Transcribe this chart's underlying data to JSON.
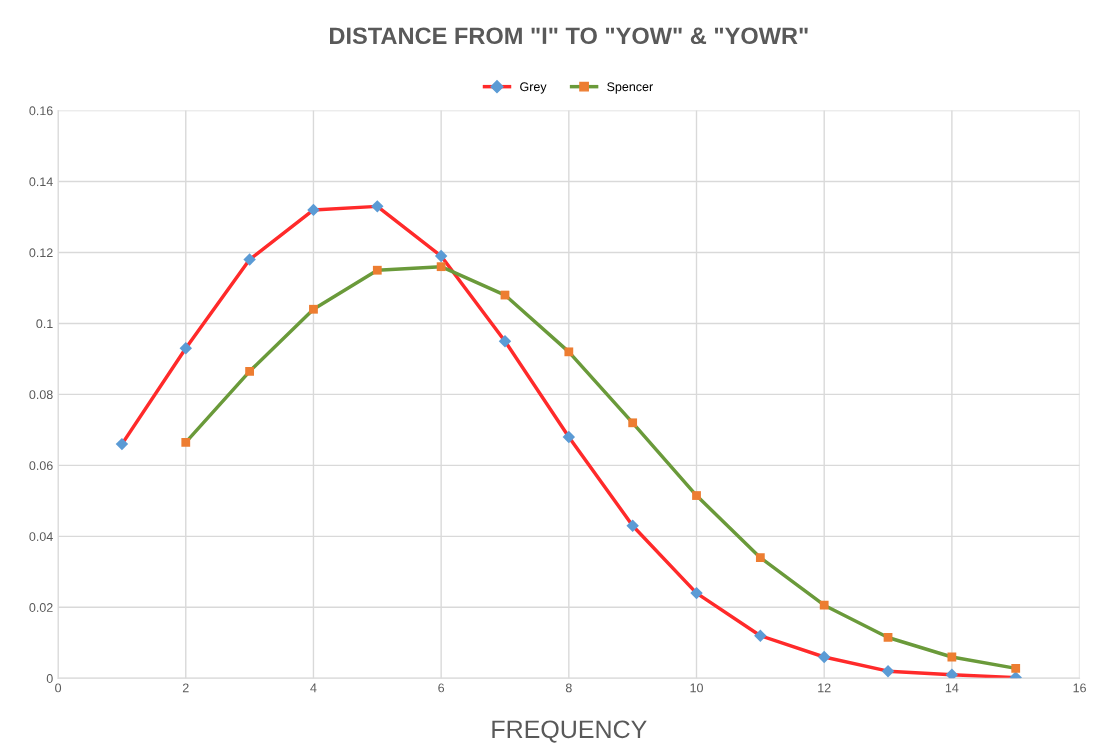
{
  "chart_data": {
    "type": "line",
    "title": "DISTANCE FROM \"I\" TO \"YOW\" & \"YOWR\"",
    "xlabel": "FREQUENCY",
    "xlim": [
      0,
      16
    ],
    "xticks": [
      0,
      2,
      4,
      6,
      8,
      10,
      12,
      14,
      16
    ],
    "ylim": [
      0,
      0.16
    ],
    "yticks": [
      0,
      0.02,
      0.04,
      0.06,
      0.08,
      0.1,
      0.12,
      0.14,
      0.16
    ],
    "grid": true,
    "legend": "top",
    "line_style": "solid",
    "series": [
      {
        "name": "Grey",
        "color": "#ff2a2a",
        "colors": [
          "#5b9bd5",
          "#5b9bd5",
          "#5b9bd5",
          "#5b9bd5",
          "#5b9bd5",
          "#5b9bd5",
          "#5b9bd5",
          "#5b9bd5",
          "#5b9bd5",
          "#5b9bd5",
          "#5b9bd5",
          "#5b9bd5",
          "#5b9bd5",
          "#5b9bd5",
          "#5b9bd5"
        ],
        "marker": "diamond",
        "x": [
          1,
          2,
          3,
          4,
          5,
          6,
          7,
          8,
          9,
          10,
          11,
          12,
          13,
          14,
          15
        ],
        "values": [
          0.066,
          0.093,
          0.118,
          0.132,
          0.133,
          0.119,
          0.095,
          0.068,
          0.043,
          0.024,
          0.012,
          0.006,
          0.002,
          0.001,
          0.0002
        ]
      },
      {
        "name": "Spencer",
        "color": "#6a9a3a",
        "colors": [
          "#ed7d31",
          "#ed7d31",
          "#ed7d31",
          "#ed7d31",
          "#ed7d31",
          "#ed7d31",
          "#ed7d31",
          "#ed7d31",
          "#ed7d31",
          "#ed7d31",
          "#ed7d31",
          "#ed7d31",
          "#ed7d31",
          "#ed7d31"
        ],
        "marker": "square",
        "x": [
          2,
          3,
          4,
          5,
          6,
          7,
          8,
          9,
          10,
          11,
          12,
          13,
          14,
          15
        ],
        "values": [
          0.0665,
          0.0865,
          0.104,
          0.115,
          0.116,
          0.108,
          0.092,
          0.072,
          0.0515,
          0.034,
          0.0206,
          0.0115,
          0.006,
          0.0028
        ]
      }
    ]
  }
}
